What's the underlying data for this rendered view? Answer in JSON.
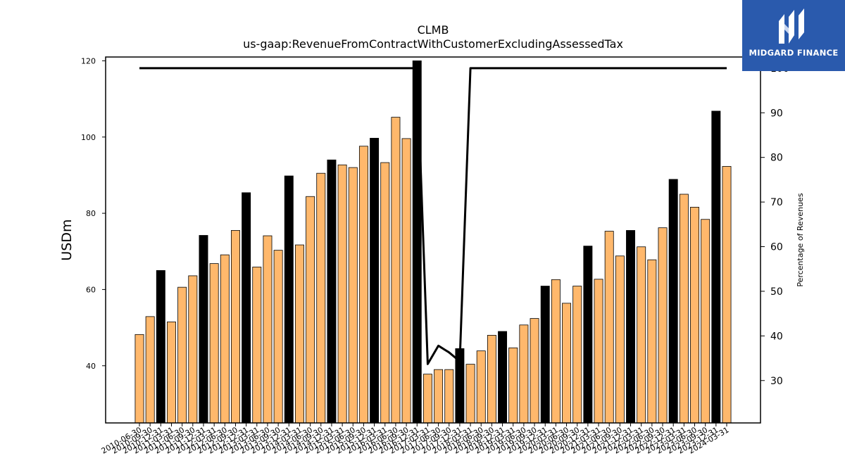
{
  "chart_data": {
    "type": "bar",
    "title": "CLMB",
    "subtitle": "us-gaap:RevenueFromContractWithCustomerExcludingAssessedTax",
    "ylabel": "USDm",
    "y2label": "Percentage of Revenues",
    "ylim": [
      25,
      121
    ],
    "y2lim": [
      20.5,
      102.5
    ],
    "yticks": [
      40,
      60,
      80,
      100,
      120
    ],
    "y2ticks": [
      30,
      40,
      50,
      60,
      70,
      80,
      90,
      100
    ],
    "xtick_labels": [
      "2010-06-30",
      "2010-09-30",
      "2010-12-31",
      "2011-03-31",
      "2011-06-30",
      "2011-09-30",
      "2011-12-31",
      "2012-03-31",
      "2012-06-30",
      "2012-09-30",
      "2012-12-31",
      "2013-03-31",
      "2013-06-30",
      "2013-09-30",
      "2013-12-31",
      "2014-03-31",
      "2014-06-30",
      "2014-09-30",
      "2014-12-31",
      "2015-03-31",
      "2015-06-30",
      "2015-09-30",
      "2015-12-31",
      "2016-03-31",
      "2016-06-30",
      "2016-09-30",
      "2016-12-31",
      "2017-03-31",
      "2017-06-30",
      "2017-09-30",
      "2017-12-31",
      "2018-03-31",
      "2018-06-30",
      "2018-09-30",
      "2018-12-31",
      "2019-03-31",
      "2019-06-30",
      "2019-09-30",
      "2019-12-31",
      "2020-03-31",
      "2020-06-30",
      "2020-09-30",
      "2020-12-31",
      "2021-03-31",
      "2021-06-30",
      "2021-09-30",
      "2021-12-31",
      "2022-03-31",
      "2022-06-30",
      "2022-09-30",
      "2022-12-31",
      "2023-03-31",
      "2023-06-30",
      "2023-09-30",
      "2023-12-31",
      "2024-03-31"
    ],
    "values": [
      48.2,
      52.9,
      65.0,
      51.5,
      60.6,
      63.6,
      74.2,
      66.8,
      69.1,
      75.5,
      85.4,
      65.9,
      74.1,
      70.3,
      89.8,
      71.7,
      84.4,
      90.5,
      94.0,
      92.7,
      92.0,
      97.6,
      99.7,
      93.3,
      105.2,
      99.6,
      120.0,
      37.8,
      39.0,
      39.0,
      44.5,
      40.4,
      43.9,
      48.0,
      49.0,
      44.7,
      50.7,
      52.4,
      60.9,
      62.6,
      56.4,
      60.9,
      71.4,
      62.7,
      75.3,
      68.8,
      75.5,
      71.2,
      67.8,
      76.2,
      88.9,
      85.0,
      81.6,
      78.4,
      106.8,
      92.3
    ],
    "highlight_indices": [
      2,
      6,
      10,
      14,
      18,
      22,
      26,
      30,
      34,
      38,
      42,
      46,
      50,
      54
    ],
    "line_series": {
      "axis": "right",
      "points": [
        [
          0,
          100
        ],
        [
          1,
          100
        ],
        [
          2,
          100
        ],
        [
          3,
          100
        ],
        [
          4,
          100
        ],
        [
          5,
          100
        ],
        [
          6,
          100
        ],
        [
          7,
          100
        ],
        [
          8,
          100
        ],
        [
          9,
          100
        ],
        [
          10,
          100
        ],
        [
          11,
          100
        ],
        [
          12,
          100
        ],
        [
          13,
          100
        ],
        [
          14,
          100
        ],
        [
          15,
          100
        ],
        [
          16,
          100
        ],
        [
          17,
          100
        ],
        [
          18,
          100
        ],
        [
          19,
          100
        ],
        [
          20,
          100
        ],
        [
          21,
          100
        ],
        [
          22,
          100
        ],
        [
          23,
          100
        ],
        [
          24,
          100
        ],
        [
          25,
          100
        ],
        [
          26,
          100
        ],
        [
          27,
          33.7
        ],
        [
          28,
          37.8
        ],
        [
          29,
          36.3
        ],
        [
          30,
          34.3
        ],
        [
          31,
          100
        ],
        [
          32,
          100
        ],
        [
          33,
          100
        ],
        [
          34,
          100
        ],
        [
          35,
          100
        ],
        [
          36,
          100
        ],
        [
          37,
          100
        ],
        [
          38,
          100
        ],
        [
          39,
          100
        ],
        [
          40,
          100
        ],
        [
          41,
          100
        ],
        [
          42,
          100
        ],
        [
          43,
          100
        ],
        [
          44,
          100
        ],
        [
          45,
          100
        ],
        [
          46,
          100
        ],
        [
          47,
          100
        ],
        [
          48,
          100
        ],
        [
          49,
          100
        ],
        [
          50,
          100
        ],
        [
          51,
          100
        ],
        [
          52,
          100
        ],
        [
          53,
          100
        ],
        [
          54,
          100
        ],
        [
          55,
          100
        ]
      ]
    },
    "colors": {
      "bar": "#ffb86c",
      "highlight": "#000000",
      "line": "#000000",
      "edge": "#000000"
    },
    "grid": false,
    "legend": "none"
  },
  "logo": {
    "text": "MIDGARD FINANCE",
    "background": "#2a5aad",
    "icon": "midgard-m-logo"
  }
}
